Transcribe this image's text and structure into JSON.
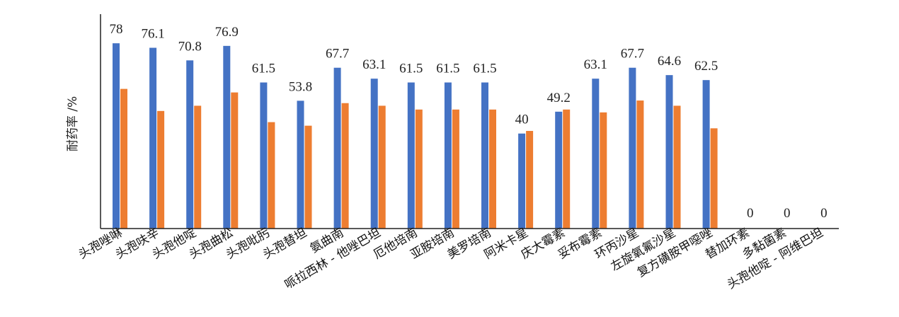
{
  "chart_data": {
    "type": "bar",
    "ylabel": "耐药率 /%",
    "ylim": [
      0,
      100
    ],
    "grid": false,
    "categories": [
      "头孢唑啉",
      "头孢呋辛",
      "头孢他啶",
      "头孢曲松",
      "头孢吡肟",
      "头孢替坦",
      "氨曲南",
      "哌拉西林 - 他唑巴坦",
      "厄他培南",
      "亚胺培南",
      "美罗培南",
      "阿米卡星",
      "庆大霉素",
      "妥布霉素",
      "环丙沙星",
      "左旋氧氟沙星",
      "复方磺胺甲噁唑",
      "替加环素",
      "多黏菌素",
      "头孢他啶 - 阿维巴坦"
    ],
    "series": [
      {
        "color": "#4472C4",
        "values": [
          78,
          76.1,
          70.8,
          76.9,
          61.5,
          53.8,
          67.7,
          63.1,
          61.5,
          61.5,
          61.5,
          40,
          49.2,
          63.1,
          67.7,
          64.6,
          62.5,
          0,
          0,
          0
        ]
      },
      {
        "color": "#ED7D31",
        "values": [
          58.8,
          49.5,
          51.7,
          57.3,
          44.8,
          43.3,
          52.8,
          51.7,
          50.1,
          50.1,
          50.1,
          41.1,
          50.1,
          48.9,
          53.9,
          51.7,
          42.2,
          0,
          0,
          0
        ]
      }
    ],
    "value_labels": [
      "78",
      "76.1",
      "70.8",
      "76.9",
      "61.5",
      "53.8",
      "67.7",
      "63.1",
      "61.5",
      "61.5",
      "61.5",
      "40",
      "49.2",
      "63.1",
      "67.7",
      "64.6",
      "62.5",
      "0",
      "0",
      "0"
    ]
  }
}
